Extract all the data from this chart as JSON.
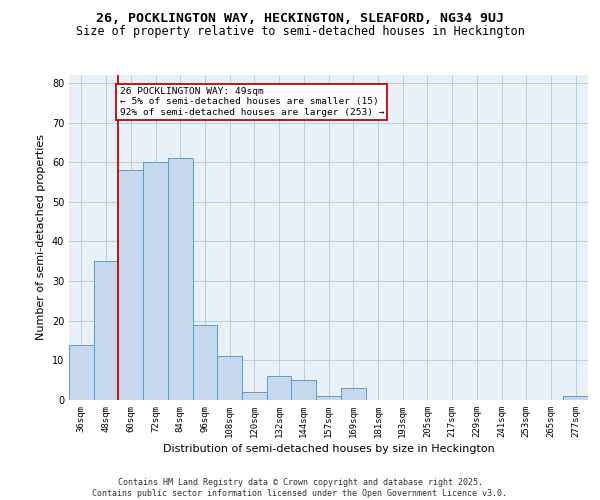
{
  "title1": "26, POCKLINGTON WAY, HECKINGTON, SLEAFORD, NG34 9UJ",
  "title2": "Size of property relative to semi-detached houses in Heckington",
  "xlabel": "Distribution of semi-detached houses by size in Heckington",
  "ylabel": "Number of semi-detached properties",
  "categories": [
    "36sqm",
    "48sqm",
    "60sqm",
    "72sqm",
    "84sqm",
    "96sqm",
    "108sqm",
    "120sqm",
    "132sqm",
    "144sqm",
    "157sqm",
    "169sqm",
    "181sqm",
    "193sqm",
    "205sqm",
    "217sqm",
    "229sqm",
    "241sqm",
    "253sqm",
    "265sqm",
    "277sqm"
  ],
  "values": [
    14,
    35,
    58,
    60,
    61,
    19,
    11,
    2,
    6,
    5,
    1,
    3,
    0,
    0,
    0,
    0,
    0,
    0,
    0,
    0,
    1
  ],
  "bar_color": "#c5d8ed",
  "bar_edge_color": "#5b9ec9",
  "ylim": [
    0,
    82
  ],
  "yticks": [
    0,
    10,
    20,
    30,
    40,
    50,
    60,
    70,
    80
  ],
  "annotation_title": "26 POCKLINGTON WAY: 49sqm",
  "annotation_line1": "← 5% of semi-detached houses are smaller (15)",
  "annotation_line2": "92% of semi-detached houses are larger (253) →",
  "annotation_box_color": "#ffffff",
  "annotation_box_edge": "#cc0000",
  "property_line_color": "#cc0000",
  "background_color": "#e8f0f8",
  "footer_line1": "Contains HM Land Registry data © Crown copyright and database right 2025.",
  "footer_line2": "Contains public sector information licensed under the Open Government Licence v3.0.",
  "grid_color": "#b8c8d8",
  "title_fontsize": 9.5,
  "subtitle_fontsize": 8.5,
  "axis_label_fontsize": 8,
  "tick_fontsize": 6.5,
  "annotation_fontsize": 6.8,
  "footer_fontsize": 6
}
